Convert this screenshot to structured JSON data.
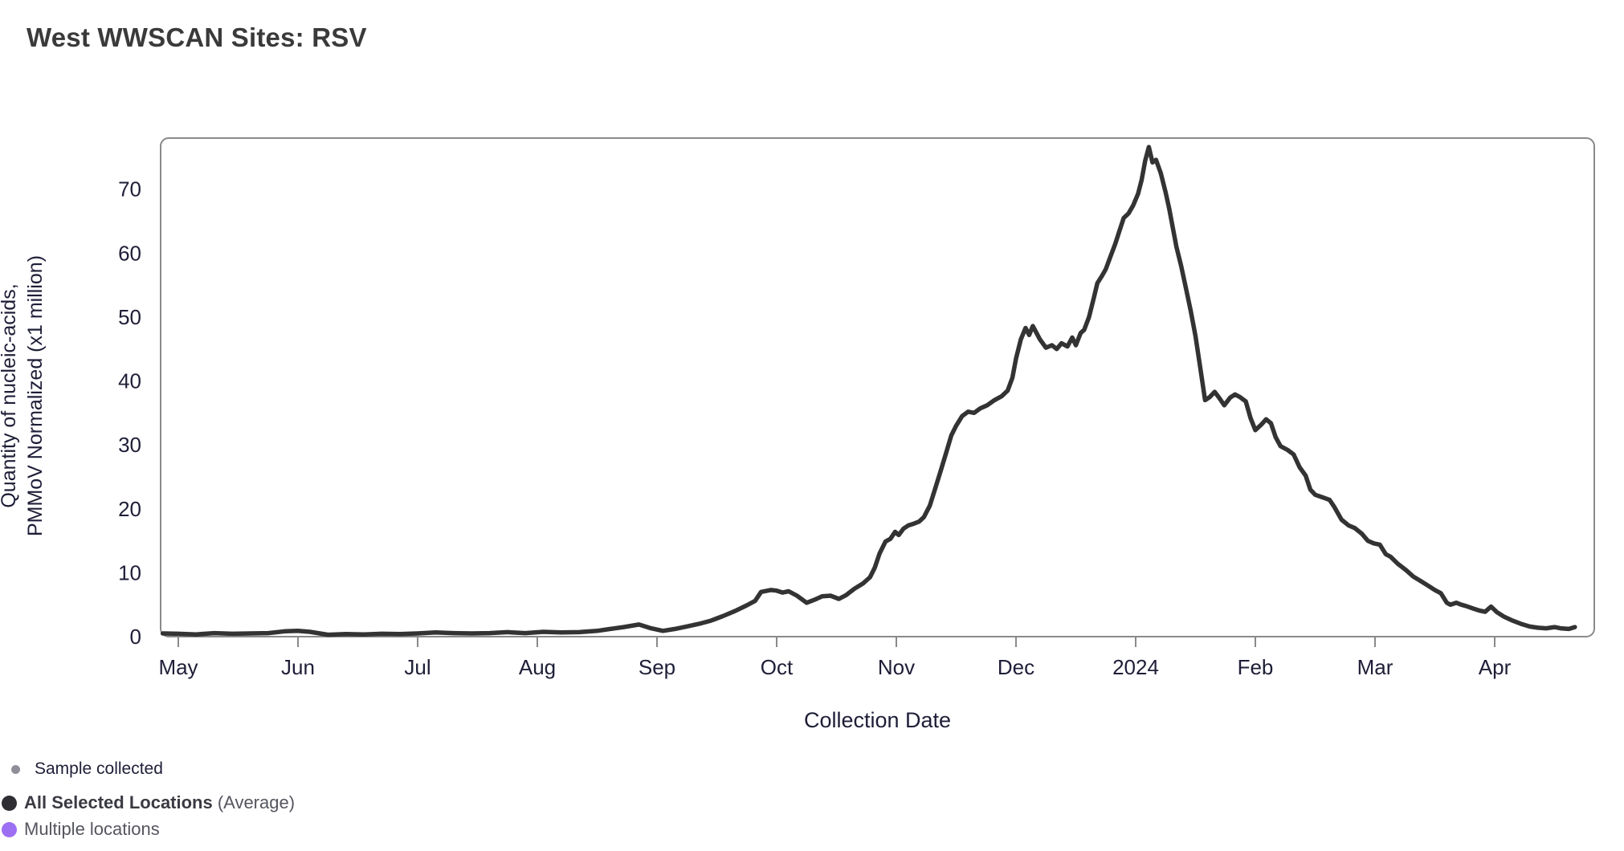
{
  "page": {
    "title": "West WWSCAN Sites: RSV"
  },
  "chart_data": {
    "type": "line",
    "title": "West WWSCAN Sites: RSV",
    "xlabel": "Collection Date",
    "ylabel": "Quantity of nucleic-acids, PMMoV Normalized (x1 million)",
    "ylabel_lines": [
      "Quantity of nucleic-acids,",
      "PMMoV Normalized (x1 million)"
    ],
    "x_tick_labels": [
      "May",
      "Jun",
      "Jul",
      "Aug",
      "Sep",
      "Oct",
      "Nov",
      "Dec",
      "2024",
      "Feb",
      "Mar",
      "Apr"
    ],
    "x_tick_positions": [
      0,
      1,
      2,
      3,
      4,
      5,
      6,
      7,
      8,
      9,
      10,
      11
    ],
    "y_ticks": [
      0,
      10,
      20,
      30,
      40,
      50,
      60,
      70
    ],
    "xlim": [
      -0.15,
      11.85
    ],
    "ylim": [
      0,
      78
    ],
    "grid": false,
    "frame": true,
    "legend_position": "bottom-left",
    "series": [
      {
        "name": "All Selected Locations (Average)",
        "color": "#333333",
        "points": [
          [
            -0.13,
            0.5
          ],
          [
            0.0,
            0.45
          ],
          [
            0.15,
            0.35
          ],
          [
            0.3,
            0.55
          ],
          [
            0.45,
            0.45
          ],
          [
            0.6,
            0.5
          ],
          [
            0.75,
            0.55
          ],
          [
            0.9,
            0.85
          ],
          [
            1.0,
            0.9
          ],
          [
            1.1,
            0.75
          ],
          [
            1.25,
            0.3
          ],
          [
            1.4,
            0.4
          ],
          [
            1.55,
            0.35
          ],
          [
            1.7,
            0.45
          ],
          [
            1.85,
            0.4
          ],
          [
            2.0,
            0.5
          ],
          [
            2.15,
            0.65
          ],
          [
            2.3,
            0.55
          ],
          [
            2.45,
            0.5
          ],
          [
            2.6,
            0.55
          ],
          [
            2.75,
            0.7
          ],
          [
            2.9,
            0.55
          ],
          [
            3.05,
            0.75
          ],
          [
            3.2,
            0.65
          ],
          [
            3.35,
            0.7
          ],
          [
            3.5,
            0.9
          ],
          [
            3.61,
            1.2
          ],
          [
            3.72,
            1.5
          ],
          [
            3.85,
            1.9
          ],
          [
            3.95,
            1.3
          ],
          [
            4.05,
            0.9
          ],
          [
            4.15,
            1.2
          ],
          [
            4.25,
            1.6
          ],
          [
            4.35,
            2.0
          ],
          [
            4.45,
            2.5
          ],
          [
            4.55,
            3.2
          ],
          [
            4.65,
            4.0
          ],
          [
            4.75,
            4.9
          ],
          [
            4.82,
            5.6
          ],
          [
            4.87,
            7.0
          ],
          [
            4.95,
            7.3
          ],
          [
            5.0,
            7.2
          ],
          [
            5.05,
            6.9
          ],
          [
            5.1,
            7.1
          ],
          [
            5.17,
            6.4
          ],
          [
            5.25,
            5.3
          ],
          [
            5.32,
            5.8
          ],
          [
            5.38,
            6.3
          ],
          [
            5.45,
            6.4
          ],
          [
            5.52,
            5.9
          ],
          [
            5.58,
            6.5
          ],
          [
            5.65,
            7.5
          ],
          [
            5.72,
            8.3
          ],
          [
            5.78,
            9.3
          ],
          [
            5.82,
            10.8
          ],
          [
            5.86,
            13.0
          ],
          [
            5.91,
            14.9
          ],
          [
            5.95,
            15.3
          ],
          [
            5.99,
            16.4
          ],
          [
            6.02,
            15.9
          ],
          [
            6.06,
            16.9
          ],
          [
            6.1,
            17.4
          ],
          [
            6.15,
            17.7
          ],
          [
            6.19,
            18.0
          ],
          [
            6.23,
            18.7
          ],
          [
            6.28,
            20.5
          ],
          [
            6.33,
            23.5
          ],
          [
            6.38,
            26.5
          ],
          [
            6.42,
            29.0
          ],
          [
            6.46,
            31.5
          ],
          [
            6.5,
            33.0
          ],
          [
            6.55,
            34.5
          ],
          [
            6.6,
            35.2
          ],
          [
            6.65,
            35.0
          ],
          [
            6.7,
            35.7
          ],
          [
            6.76,
            36.2
          ],
          [
            6.82,
            37.0
          ],
          [
            6.88,
            37.6
          ],
          [
            6.93,
            38.5
          ],
          [
            6.97,
            40.5
          ],
          [
            7.0,
            43.5
          ],
          [
            7.04,
            46.5
          ],
          [
            7.08,
            48.3
          ],
          [
            7.11,
            47.2
          ],
          [
            7.14,
            48.6
          ],
          [
            7.2,
            46.5
          ],
          [
            7.25,
            45.2
          ],
          [
            7.3,
            45.6
          ],
          [
            7.34,
            45.0
          ],
          [
            7.38,
            45.9
          ],
          [
            7.43,
            45.4
          ],
          [
            7.47,
            46.8
          ],
          [
            7.5,
            45.6
          ],
          [
            7.54,
            47.5
          ],
          [
            7.57,
            48.0
          ],
          [
            7.61,
            50.0
          ],
          [
            7.65,
            53.0
          ],
          [
            7.68,
            55.3
          ],
          [
            7.72,
            56.5
          ],
          [
            7.75,
            57.5
          ],
          [
            7.79,
            59.5
          ],
          [
            7.83,
            61.5
          ],
          [
            7.87,
            63.8
          ],
          [
            7.9,
            65.5
          ],
          [
            7.94,
            66.2
          ],
          [
            7.98,
            67.5
          ],
          [
            8.02,
            69.3
          ],
          [
            8.05,
            71.5
          ],
          [
            8.08,
            74.5
          ],
          [
            8.11,
            76.6
          ],
          [
            8.14,
            74.2
          ],
          [
            8.17,
            74.6
          ],
          [
            8.21,
            72.5
          ],
          [
            8.25,
            69.5
          ],
          [
            8.28,
            67.0
          ],
          [
            8.31,
            64.0
          ],
          [
            8.34,
            61.0
          ],
          [
            8.38,
            58.0
          ],
          [
            8.42,
            54.5
          ],
          [
            8.46,
            51.0
          ],
          [
            8.5,
            47.0
          ],
          [
            8.54,
            42.0
          ],
          [
            8.58,
            37.0
          ],
          [
            8.62,
            37.5
          ],
          [
            8.66,
            38.3
          ],
          [
            8.7,
            37.3
          ],
          [
            8.74,
            36.2
          ],
          [
            8.79,
            37.4
          ],
          [
            8.83,
            37.9
          ],
          [
            8.87,
            37.5
          ],
          [
            8.92,
            36.8
          ],
          [
            8.96,
            34.2
          ],
          [
            9.0,
            32.3
          ],
          [
            9.05,
            33.2
          ],
          [
            9.09,
            34.0
          ],
          [
            9.13,
            33.4
          ],
          [
            9.17,
            31.2
          ],
          [
            9.21,
            29.8
          ],
          [
            9.27,
            29.2
          ],
          [
            9.32,
            28.5
          ],
          [
            9.37,
            26.5
          ],
          [
            9.42,
            25.2
          ],
          [
            9.46,
            23.0
          ],
          [
            9.5,
            22.2
          ],
          [
            9.56,
            21.8
          ],
          [
            9.62,
            21.4
          ],
          [
            9.66,
            20.3
          ],
          [
            9.72,
            18.3
          ],
          [
            9.78,
            17.4
          ],
          [
            9.83,
            17.0
          ],
          [
            9.89,
            16.1
          ],
          [
            9.94,
            15.0
          ],
          [
            9.99,
            14.6
          ],
          [
            10.04,
            14.4
          ],
          [
            10.09,
            12.9
          ],
          [
            10.13,
            12.5
          ],
          [
            10.19,
            11.4
          ],
          [
            10.26,
            10.4
          ],
          [
            10.32,
            9.4
          ],
          [
            10.39,
            8.6
          ],
          [
            10.45,
            7.9
          ],
          [
            10.5,
            7.3
          ],
          [
            10.55,
            6.8
          ],
          [
            10.6,
            5.3
          ],
          [
            10.63,
            5.0
          ],
          [
            10.68,
            5.3
          ],
          [
            10.72,
            5.0
          ],
          [
            10.76,
            4.8
          ],
          [
            10.82,
            4.4
          ],
          [
            10.87,
            4.1
          ],
          [
            10.92,
            3.9
          ],
          [
            10.97,
            4.7
          ],
          [
            11.02,
            3.8
          ],
          [
            11.08,
            3.1
          ],
          [
            11.15,
            2.5
          ],
          [
            11.22,
            2.0
          ],
          [
            11.29,
            1.6
          ],
          [
            11.36,
            1.4
          ],
          [
            11.43,
            1.3
          ],
          [
            11.5,
            1.5
          ],
          [
            11.55,
            1.3
          ],
          [
            11.62,
            1.2
          ],
          [
            11.67,
            1.5
          ]
        ]
      }
    ]
  },
  "legend": {
    "sample": {
      "label": "Sample collected",
      "dot_color": "#8f8f9a"
    },
    "average": {
      "label_bold": "All Selected Locations",
      "label_suffix": " (Average)",
      "dot_color": "#2e2e33"
    },
    "multiple": {
      "label": "Multiple locations",
      "dot_color": "#9d6ff2"
    }
  },
  "colors": {
    "line": "#333333",
    "frame": "#8a8a8a",
    "axis_text": "#1e1e38",
    "title_text": "#3a3a3a"
  }
}
